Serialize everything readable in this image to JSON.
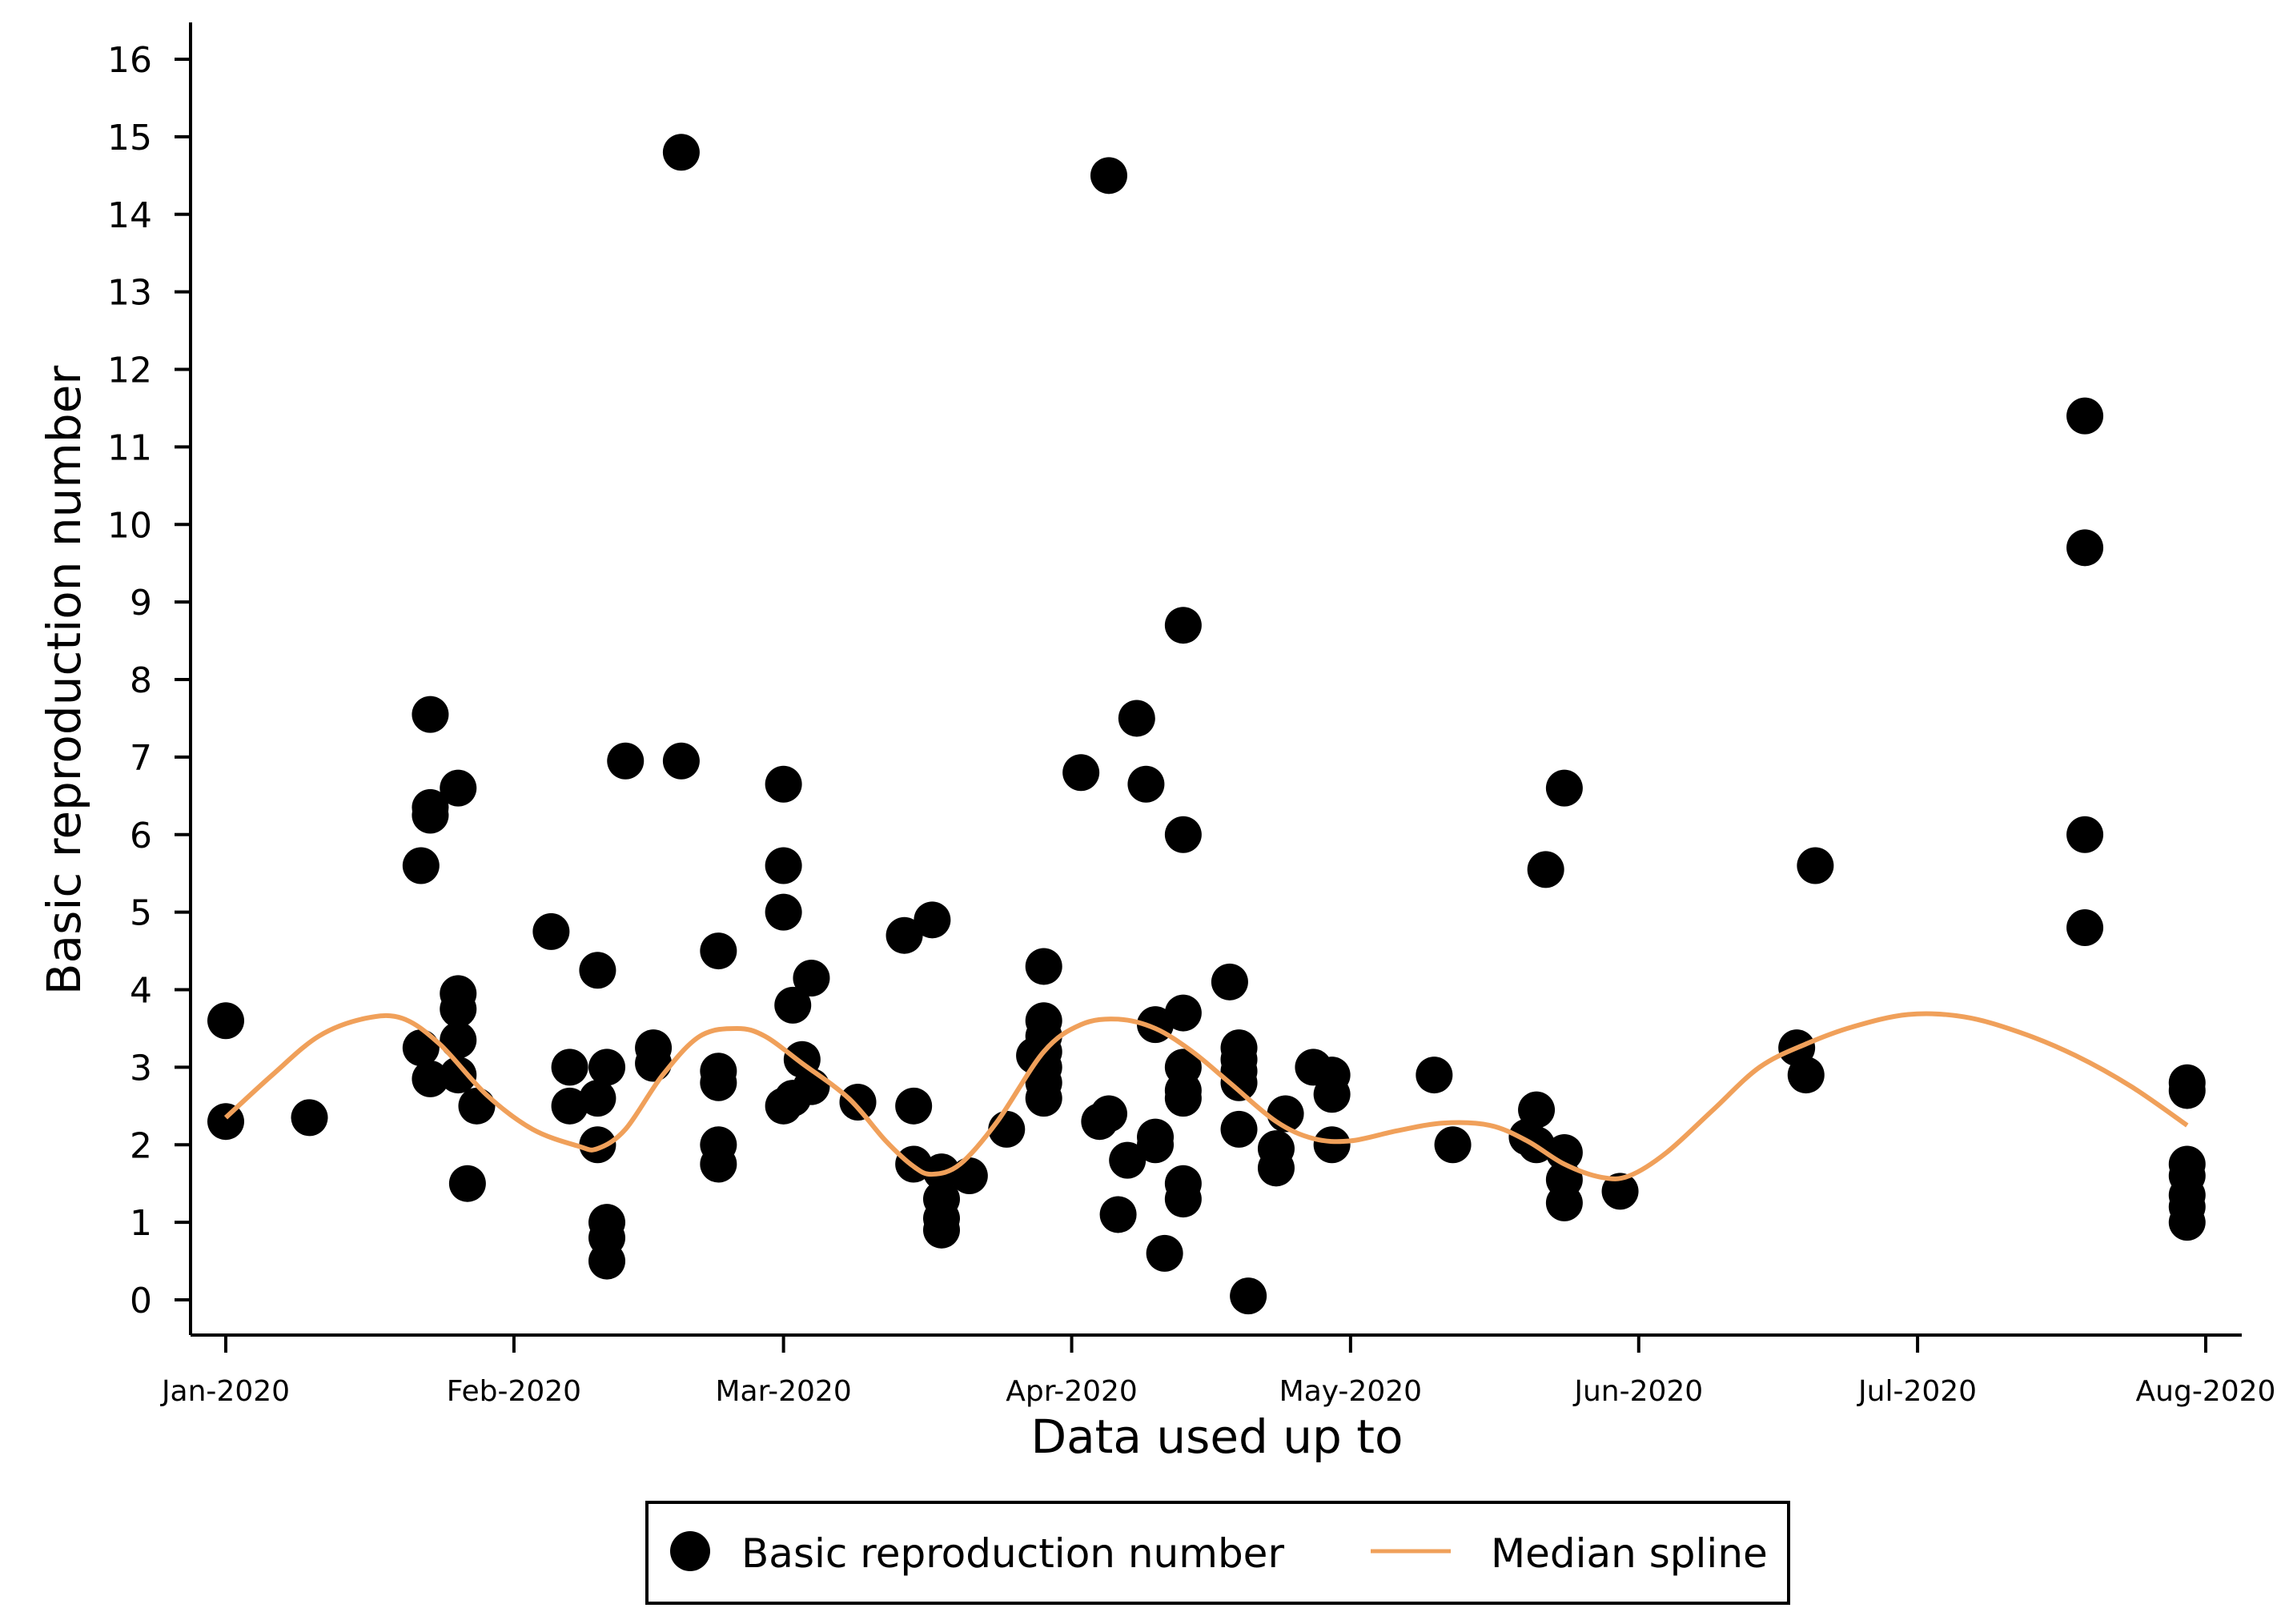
{
  "chart_data": {
    "type": "scatter",
    "title": "",
    "xlabel": "Data used up to",
    "ylabel": "Basic reproduction number",
    "ylim": [
      0,
      16
    ],
    "yticks": [
      0,
      1,
      2,
      3,
      4,
      5,
      6,
      7,
      8,
      9,
      10,
      11,
      12,
      13,
      14,
      15,
      16
    ],
    "xlim_days": [
      0,
      213
    ],
    "xticks": [
      {
        "day": 0,
        "label": "Jan-2020"
      },
      {
        "day": 31,
        "label": "Feb-2020"
      },
      {
        "day": 60,
        "label": "Mar-2020"
      },
      {
        "day": 91,
        "label": "Apr-2020"
      },
      {
        "day": 121,
        "label": "May-2020"
      },
      {
        "day": 152,
        "label": "Jun-2020"
      },
      {
        "day": 182,
        "label": "Jul-2020"
      },
      {
        "day": 213,
        "label": "Aug-2020"
      }
    ],
    "legend": {
      "placement": "bottom",
      "entries": [
        {
          "label": "Basic reproduction number",
          "kind": "point"
        },
        {
          "label": "Median spline",
          "kind": "line"
        }
      ]
    },
    "colors": {
      "points": "#000000",
      "spline": "#f0a05a"
    },
    "series": [
      {
        "name": "Basic reproduction number",
        "kind": "scatter",
        "points": [
          [
            0,
            3.6
          ],
          [
            0,
            2.3
          ],
          [
            9,
            2.35
          ],
          [
            21,
            5.6
          ],
          [
            21,
            3.25
          ],
          [
            22,
            7.55
          ],
          [
            22,
            6.35
          ],
          [
            22,
            6.25
          ],
          [
            22,
            2.85
          ],
          [
            25,
            6.6
          ],
          [
            25,
            3.95
          ],
          [
            25,
            3.75
          ],
          [
            25,
            3.35
          ],
          [
            25,
            2.9
          ],
          [
            26,
            1.5
          ],
          [
            27,
            2.5
          ],
          [
            35,
            4.75
          ],
          [
            37,
            3.0
          ],
          [
            37,
            2.5
          ],
          [
            40,
            4.25
          ],
          [
            40,
            2.6
          ],
          [
            40,
            2.0
          ],
          [
            41,
            3.0
          ],
          [
            41,
            1.0
          ],
          [
            41,
            0.8
          ],
          [
            41,
            0.5
          ],
          [
            43,
            6.95
          ],
          [
            46,
            3.25
          ],
          [
            46,
            3.05
          ],
          [
            49,
            6.95
          ],
          [
            49,
            14.8
          ],
          [
            53,
            4.5
          ],
          [
            53,
            2.95
          ],
          [
            53,
            2.8
          ],
          [
            53,
            2.0
          ],
          [
            53,
            1.75
          ],
          [
            60,
            6.65
          ],
          [
            60,
            5.6
          ],
          [
            60,
            5.0
          ],
          [
            60,
            2.5
          ],
          [
            61,
            3.8
          ],
          [
            61,
            2.6
          ],
          [
            62,
            3.1
          ],
          [
            63,
            4.15
          ],
          [
            63,
            2.75
          ],
          [
            68,
            2.55
          ],
          [
            73,
            4.7
          ],
          [
            74,
            2.5
          ],
          [
            74,
            1.75
          ],
          [
            76,
            4.9
          ],
          [
            77,
            1.65
          ],
          [
            77,
            1.3
          ],
          [
            77,
            1.05
          ],
          [
            77,
            0.9
          ],
          [
            80,
            1.6
          ],
          [
            84,
            2.2
          ],
          [
            88,
            4.3
          ],
          [
            88,
            3.6
          ],
          [
            88,
            3.4
          ],
          [
            88,
            3.2
          ],
          [
            88,
            3.0
          ],
          [
            88,
            2.8
          ],
          [
            88,
            2.6
          ],
          [
            87,
            3.15
          ],
          [
            92,
            6.8
          ],
          [
            94,
            2.3
          ],
          [
            95,
            2.4
          ],
          [
            95,
            14.5
          ],
          [
            96,
            1.1
          ],
          [
            97,
            1.8
          ],
          [
            98,
            7.5
          ],
          [
            99,
            6.65
          ],
          [
            100,
            3.55
          ],
          [
            100,
            2.1
          ],
          [
            100,
            2.0
          ],
          [
            101,
            0.6
          ],
          [
            103,
            8.7
          ],
          [
            103,
            6.0
          ],
          [
            103,
            3.7
          ],
          [
            103,
            3.0
          ],
          [
            103,
            2.7
          ],
          [
            103,
            2.6
          ],
          [
            103,
            1.5
          ],
          [
            103,
            1.3
          ],
          [
            108,
            4.1
          ],
          [
            109,
            3.25
          ],
          [
            109,
            3.1
          ],
          [
            109,
            2.95
          ],
          [
            109,
            2.8
          ],
          [
            109,
            2.2
          ],
          [
            110,
            0.05
          ],
          [
            113,
            1.95
          ],
          [
            113,
            1.7
          ],
          [
            114,
            2.4
          ],
          [
            117,
            3.0
          ],
          [
            119,
            2.9
          ],
          [
            119,
            2.65
          ],
          [
            119,
            2.0
          ],
          [
            130,
            2.9
          ],
          [
            132,
            2.0
          ],
          [
            140,
            2.1
          ],
          [
            141,
            2.45
          ],
          [
            141,
            2.0
          ],
          [
            142,
            5.55
          ],
          [
            144,
            6.6
          ],
          [
            144,
            1.9
          ],
          [
            144,
            1.55
          ],
          [
            144,
            1.25
          ],
          [
            150,
            1.4
          ],
          [
            169,
            3.25
          ],
          [
            170,
            2.9
          ],
          [
            171,
            5.6
          ],
          [
            200,
            11.4
          ],
          [
            200,
            9.7
          ],
          [
            200,
            6.0
          ],
          [
            200,
            4.8
          ],
          [
            211,
            2.8
          ],
          [
            211,
            2.7
          ],
          [
            211,
            1.75
          ],
          [
            211,
            1.6
          ],
          [
            211,
            1.35
          ],
          [
            211,
            1.2
          ],
          [
            211,
            1.0
          ]
        ]
      },
      {
        "name": "Median spline",
        "kind": "line",
        "points": [
          [
            0,
            2.35
          ],
          [
            5,
            2.9
          ],
          [
            10,
            3.4
          ],
          [
            15,
            3.63
          ],
          [
            19,
            3.63
          ],
          [
            23,
            3.3
          ],
          [
            28,
            2.65
          ],
          [
            33,
            2.2
          ],
          [
            38,
            1.98
          ],
          [
            40,
            1.95
          ],
          [
            43,
            2.2
          ],
          [
            47,
            2.9
          ],
          [
            51,
            3.4
          ],
          [
            55,
            3.5
          ],
          [
            58,
            3.4
          ],
          [
            62,
            3.05
          ],
          [
            67,
            2.6
          ],
          [
            71,
            2.05
          ],
          [
            74,
            1.72
          ],
          [
            76,
            1.62
          ],
          [
            79,
            1.75
          ],
          [
            83,
            2.3
          ],
          [
            88,
            3.2
          ],
          [
            92,
            3.55
          ],
          [
            96,
            3.62
          ],
          [
            100,
            3.5
          ],
          [
            104,
            3.2
          ],
          [
            108,
            2.8
          ],
          [
            113,
            2.3
          ],
          [
            117,
            2.08
          ],
          [
            121,
            2.05
          ],
          [
            126,
            2.18
          ],
          [
            131,
            2.28
          ],
          [
            136,
            2.25
          ],
          [
            140,
            2.05
          ],
          [
            144,
            1.75
          ],
          [
            148,
            1.58
          ],
          [
            151,
            1.6
          ],
          [
            155,
            1.9
          ],
          [
            160,
            2.45
          ],
          [
            165,
            3.0
          ],
          [
            170,
            3.3
          ],
          [
            175,
            3.52
          ],
          [
            181,
            3.68
          ],
          [
            187,
            3.65
          ],
          [
            193,
            3.45
          ],
          [
            199,
            3.15
          ],
          [
            205,
            2.75
          ],
          [
            211,
            2.25
          ]
        ]
      }
    ]
  }
}
